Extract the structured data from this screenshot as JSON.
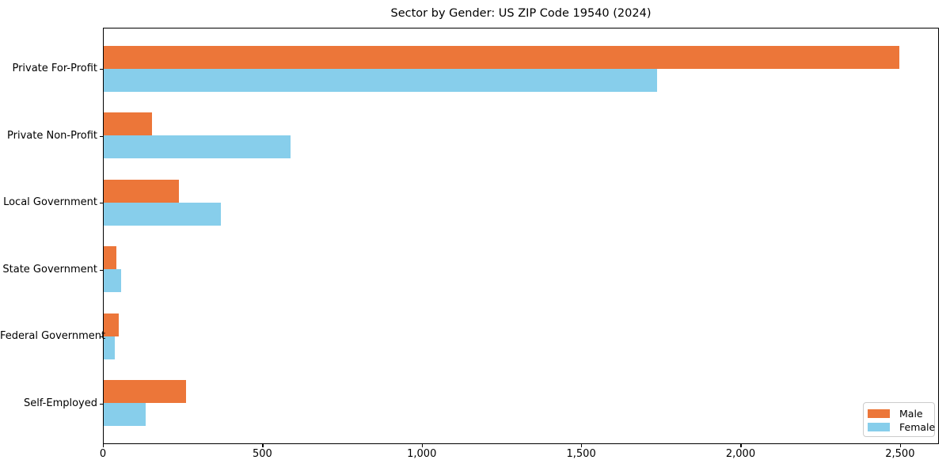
{
  "chart_data": {
    "type": "bar",
    "orientation": "horizontal",
    "title": "Sector by Gender: US ZIP Code 19540 (2024)",
    "categories": [
      "Private For-Profit",
      "Private Non-Profit",
      "Local Government",
      "State Government",
      "Federal Government",
      "Self-Employed"
    ],
    "series": [
      {
        "name": "Male",
        "color": "#ec7639",
        "values": [
          2495,
          152,
          236,
          40,
          48,
          258
        ]
      },
      {
        "name": "Female",
        "color": "#87ceeb",
        "values": [
          1735,
          587,
          368,
          55,
          35,
          132
        ]
      }
    ],
    "xlabel": "",
    "ylabel": "",
    "xlim": [
      0,
      2622
    ],
    "xticks": [
      0,
      500,
      1000,
      1500,
      2000,
      2500
    ],
    "xticklabels": [
      "0",
      "500",
      "1,000",
      "1,500",
      "2,000",
      "2,500"
    ],
    "grid": false,
    "legend": {
      "position": "lower right",
      "entries": [
        "Male",
        "Female"
      ]
    }
  }
}
